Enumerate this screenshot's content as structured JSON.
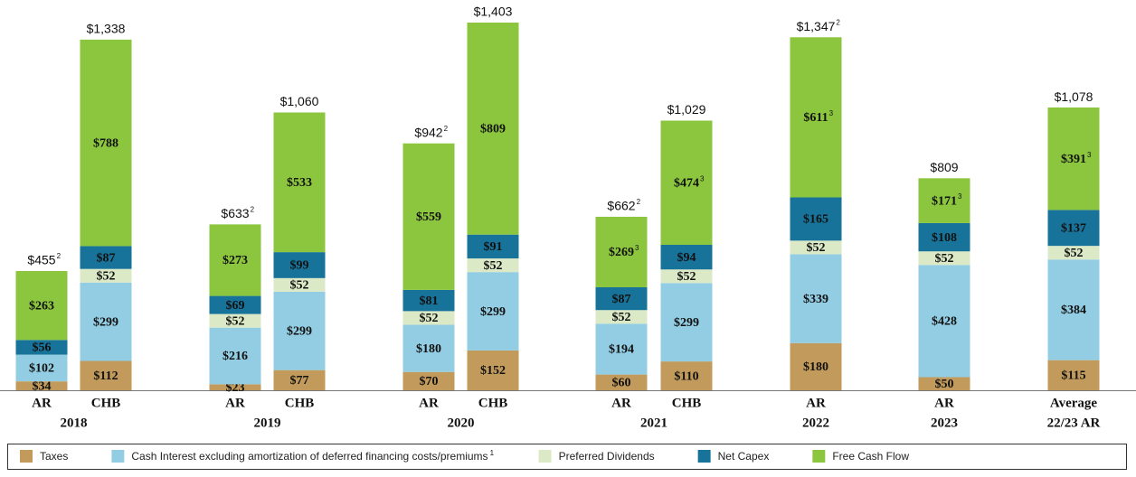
{
  "chart_data": {
    "type": "stacked-bar",
    "groups": [
      {
        "name": "2018",
        "categories": [
          "AR",
          "CHB"
        ]
      },
      {
        "name": "2019",
        "categories": [
          "AR",
          "CHB"
        ]
      },
      {
        "name": "2020",
        "categories": [
          "AR",
          "CHB"
        ]
      },
      {
        "name": "2021",
        "categories": [
          "AR",
          "CHB"
        ]
      },
      {
        "name": "2022",
        "categories": [
          "AR"
        ]
      },
      {
        "name": "2023",
        "categories": [
          "AR"
        ]
      },
      {
        "name": "22/23 AR",
        "categories": [
          "Average"
        ]
      }
    ],
    "series": [
      {
        "name": "Taxes",
        "color": "#c29b5c",
        "values": [
          34,
          112,
          23,
          77,
          70,
          152,
          60,
          110,
          180,
          50,
          115
        ],
        "value_labels": [
          "$34",
          "$112",
          "$23",
          "$77",
          "$70",
          "$152",
          "$60",
          "$110",
          "$180",
          "$50",
          "$115"
        ]
      },
      {
        "name": "Cash Interest excluding amortization of deferred financing costs/premiums",
        "note": "1",
        "color": "#93cde3",
        "values": [
          102,
          299,
          216,
          299,
          180,
          299,
          194,
          299,
          339,
          428,
          384
        ],
        "value_labels": [
          "$102",
          "$299",
          "$216",
          "$299",
          "$180",
          "$299",
          "$194",
          "$299",
          "$339",
          "$428",
          "$384"
        ]
      },
      {
        "name": "Preferred Dividends",
        "color": "#dce9c6",
        "values": [
          null,
          52,
          52,
          52,
          52,
          52,
          52,
          52,
          52,
          52,
          52
        ],
        "value_labels": [
          null,
          "$52",
          "$52",
          "$52",
          "$52",
          "$52",
          "$52",
          "$52",
          "$52",
          "$52",
          "$52"
        ]
      },
      {
        "name": "Net Capex",
        "color": "#18739a",
        "values": [
          56,
          87,
          69,
          99,
          81,
          91,
          87,
          94,
          165,
          108,
          137
        ],
        "value_labels": [
          "$56",
          "$87",
          "$69",
          "$99",
          "$81",
          "$91",
          "$87",
          "$94",
          "$165",
          "$108",
          "$137"
        ]
      },
      {
        "name": "Free Cash Flow",
        "color": "#8cc63f",
        "values": [
          263,
          788,
          273,
          533,
          559,
          809,
          269,
          474,
          611,
          171,
          391
        ],
        "value_labels": [
          "$263",
          "$788",
          "$273",
          "$533",
          "$559",
          "$809",
          "$269",
          "$474",
          "$611",
          "$171",
          "$391"
        ],
        "notes": [
          null,
          null,
          null,
          null,
          null,
          null,
          "3",
          "3",
          "3",
          "3",
          "3"
        ]
      }
    ],
    "totals": [
      455,
      1338,
      633,
      1060,
      942,
      1403,
      662,
      1029,
      1347,
      809,
      1078
    ],
    "total_labels": [
      "$455",
      "$1,338",
      "$633",
      "$1,060",
      "$942",
      "$1,403",
      "$662",
      "$1,029",
      "$1,347",
      "$809",
      "$1,078"
    ],
    "total_notes": [
      "2",
      null,
      "2",
      null,
      "2",
      null,
      "2",
      null,
      "2",
      null,
      null
    ]
  }
}
